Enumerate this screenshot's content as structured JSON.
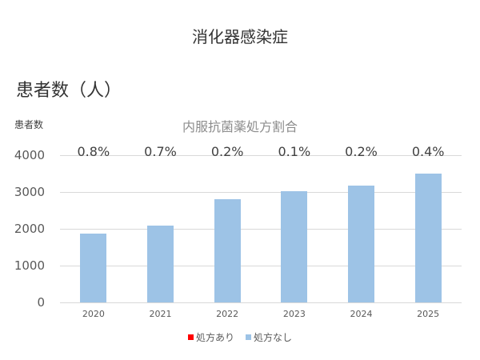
{
  "header": {
    "title": "消化器感染症",
    "unit_label": "患者数（人）",
    "y_axis_title": "患者数",
    "subtitle": "内服抗菌薬処方割合"
  },
  "legend": {
    "items": [
      {
        "label": "処方あり",
        "color": "#ff0000"
      },
      {
        "label": "処方なし",
        "color": "#9dc3e6"
      }
    ]
  },
  "colors": {
    "with_prescription": "#ff0000",
    "without_prescription": "#9dc3e6",
    "gridline": "#d9d9d9"
  },
  "chart_data": {
    "type": "bar",
    "stacked": true,
    "title": "消化器感染症",
    "subtitle": "内服抗菌薬処方割合",
    "xlabel": "",
    "ylabel": "患者数（人）",
    "ylim": [
      0,
      4000
    ],
    "yticks": [
      0,
      1000,
      2000,
      3000,
      4000
    ],
    "grid": true,
    "legend_position": "bottom",
    "categories": [
      "2020",
      "2021",
      "2022",
      "2023",
      "2024",
      "2025"
    ],
    "series": [
      {
        "name": "処方あり",
        "color": "#ff0000",
        "values": [
          15,
          15,
          6,
          3,
          6,
          14
        ]
      },
      {
        "name": "処方なし",
        "color": "#9dc3e6",
        "values": [
          1855,
          2075,
          2794,
          3017,
          3164,
          3486
        ]
      }
    ],
    "totals": [
      1870,
      2090,
      2800,
      3020,
      3170,
      3500
    ],
    "annotations": [
      "0.8%",
      "0.7%",
      "0.2%",
      "0.1%",
      "0.2%",
      "0.4%"
    ]
  }
}
